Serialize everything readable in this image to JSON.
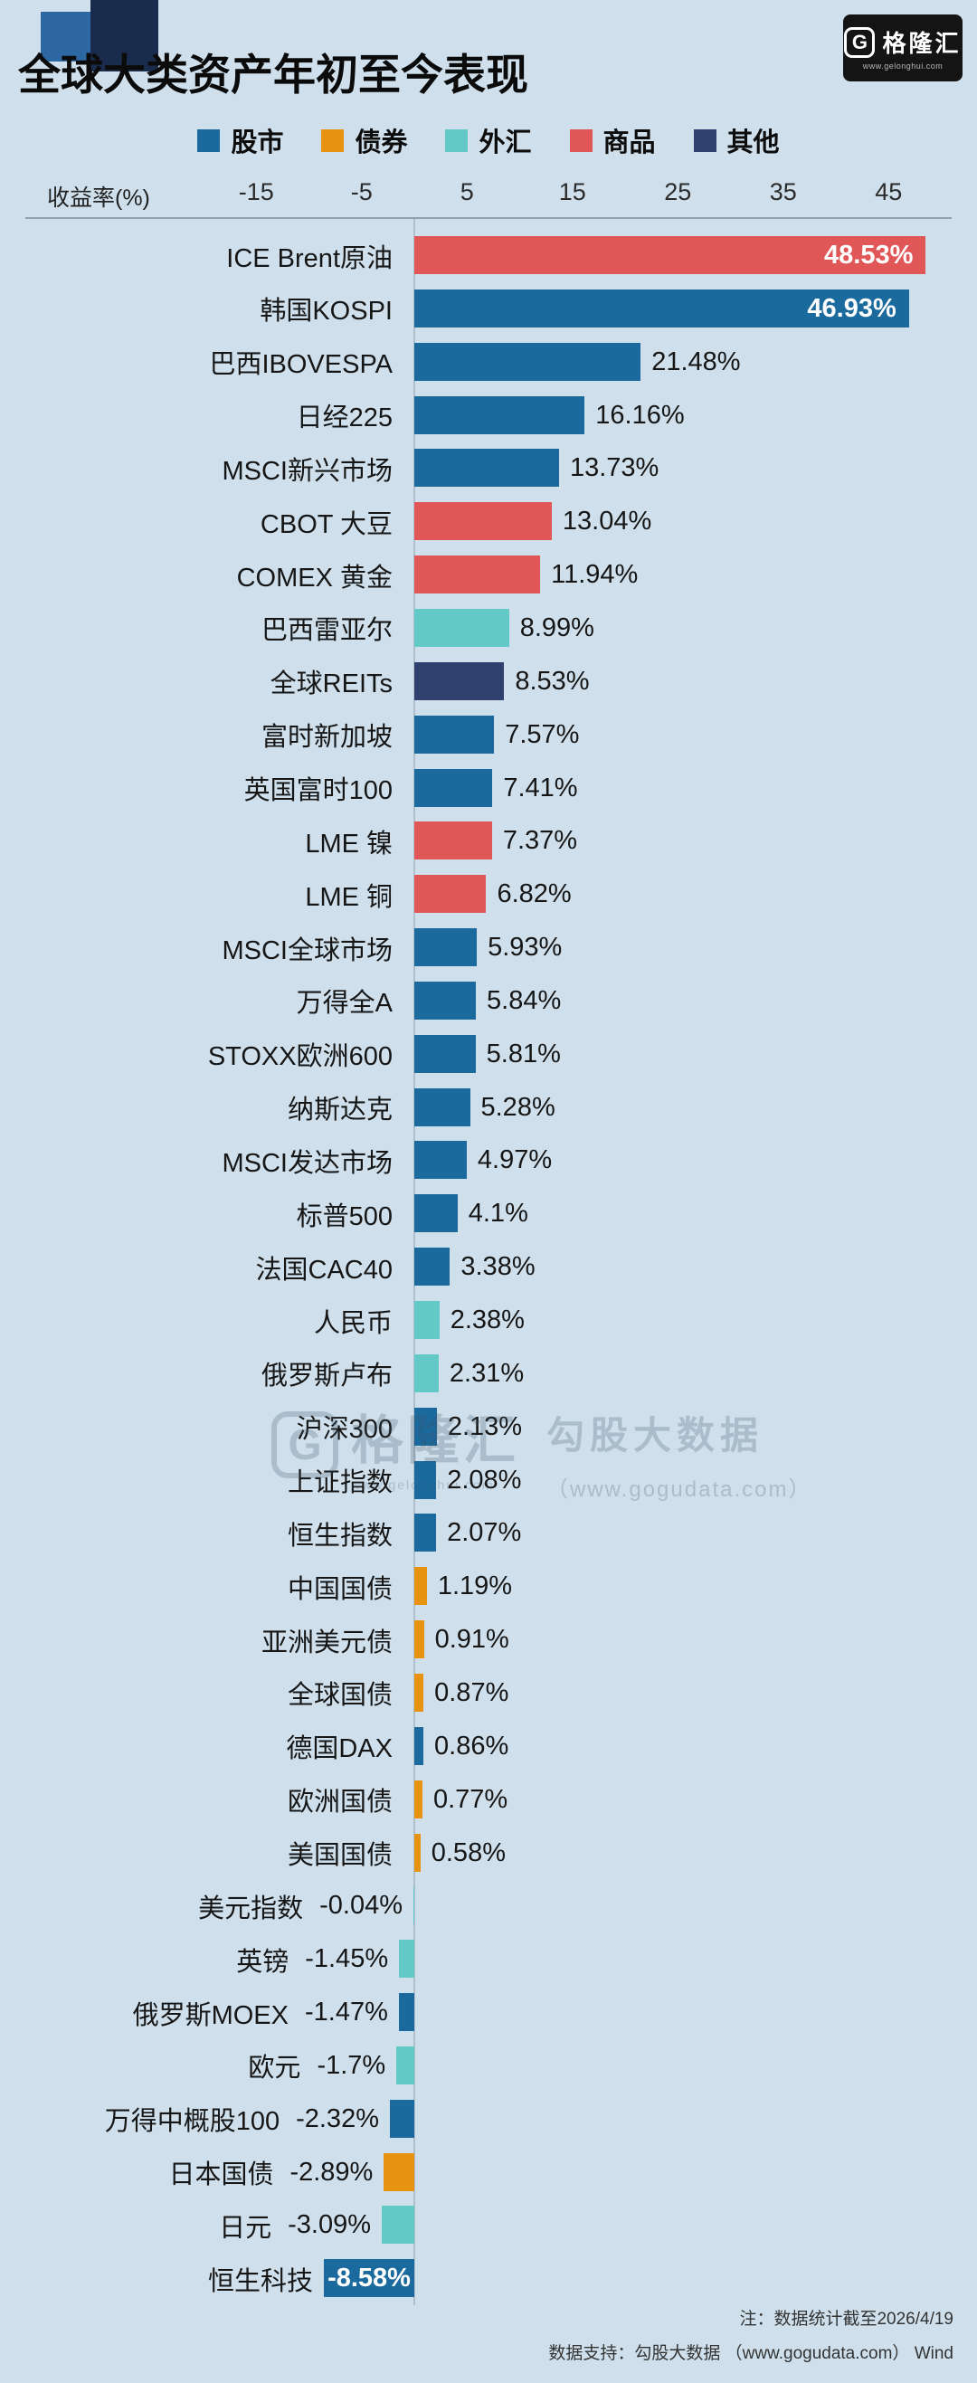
{
  "page": {
    "title": "全球大类资产年初至今表现",
    "background_color": "#cfe0ec"
  },
  "logo": {
    "g_letter": "G",
    "name": "格隆汇",
    "url": "www.gelonghui.com"
  },
  "legend": [
    {
      "label": "股市",
      "color": "#1a6a9e"
    },
    {
      "label": "债券",
      "color": "#e79210"
    },
    {
      "label": "外汇",
      "color": "#63c9c7"
    },
    {
      "label": "商品",
      "color": "#e15757"
    },
    {
      "label": "其他",
      "color": "#2f3f6e"
    }
  ],
  "axis": {
    "label": "收益率(%)"
  },
  "chart_data": {
    "type": "bar",
    "orientation": "horizontal",
    "title": "全球大类资产年初至今表现",
    "xlabel": "收益率(%)",
    "xticks": [
      -15,
      -5,
      5,
      15,
      25,
      35,
      45
    ],
    "xlim": [
      -17,
      53
    ],
    "value_unit": "%",
    "legend_position": "top",
    "grid": false,
    "rows": [
      {
        "label": "ICE Brent原油",
        "value": 48.53,
        "display": "48.53%",
        "category": "商品",
        "inside": true
      },
      {
        "label": "韩国KOSPI",
        "value": 46.93,
        "display": "46.93%",
        "category": "股市",
        "inside": true
      },
      {
        "label": "巴西IBOVESPA",
        "value": 21.48,
        "display": "21.48%",
        "category": "股市",
        "inside": false
      },
      {
        "label": "日经225",
        "value": 16.16,
        "display": "16.16%",
        "category": "股市",
        "inside": false
      },
      {
        "label": "MSCI新兴市场",
        "value": 13.73,
        "display": "13.73%",
        "category": "股市",
        "inside": false
      },
      {
        "label": "CBOT 大豆",
        "value": 13.04,
        "display": "13.04%",
        "category": "商品",
        "inside": false
      },
      {
        "label": "COMEX 黄金",
        "value": 11.94,
        "display": "11.94%",
        "category": "商品",
        "inside": false
      },
      {
        "label": "巴西雷亚尔",
        "value": 8.99,
        "display": "8.99%",
        "category": "外汇",
        "inside": false
      },
      {
        "label": "全球REITs",
        "value": 8.53,
        "display": "8.53%",
        "category": "其他",
        "inside": false
      },
      {
        "label": "富时新加坡",
        "value": 7.57,
        "display": "7.57%",
        "category": "股市",
        "inside": false
      },
      {
        "label": "英国富时100",
        "value": 7.41,
        "display": "7.41%",
        "category": "股市",
        "inside": false
      },
      {
        "label": "LME 镍",
        "value": 7.37,
        "display": "7.37%",
        "category": "商品",
        "inside": false
      },
      {
        "label": "LME 铜",
        "value": 6.82,
        "display": "6.82%",
        "category": "商品",
        "inside": false
      },
      {
        "label": "MSCI全球市场",
        "value": 5.93,
        "display": "5.93%",
        "category": "股市",
        "inside": false
      },
      {
        "label": "万得全A",
        "value": 5.84,
        "display": "5.84%",
        "category": "股市",
        "inside": false
      },
      {
        "label": "STOXX欧洲600",
        "value": 5.81,
        "display": "5.81%",
        "category": "股市",
        "inside": false
      },
      {
        "label": "纳斯达克",
        "value": 5.28,
        "display": "5.28%",
        "category": "股市",
        "inside": false
      },
      {
        "label": "MSCI发达市场",
        "value": 4.97,
        "display": "4.97%",
        "category": "股市",
        "inside": false
      },
      {
        "label": "标普500",
        "value": 4.1,
        "display": "4.1%",
        "category": "股市",
        "inside": false
      },
      {
        "label": "法国CAC40",
        "value": 3.38,
        "display": "3.38%",
        "category": "股市",
        "inside": false
      },
      {
        "label": "人民币",
        "value": 2.38,
        "display": "2.38%",
        "category": "外汇",
        "inside": false
      },
      {
        "label": "俄罗斯卢布",
        "value": 2.31,
        "display": "2.31%",
        "category": "外汇",
        "inside": false
      },
      {
        "label": "沪深300",
        "value": 2.13,
        "display": "2.13%",
        "category": "股市",
        "inside": false
      },
      {
        "label": "上证指数",
        "value": 2.08,
        "display": "2.08%",
        "category": "股市",
        "inside": false
      },
      {
        "label": "恒生指数",
        "value": 2.07,
        "display": "2.07%",
        "category": "股市",
        "inside": false
      },
      {
        "label": "中国国债",
        "value": 1.19,
        "display": "1.19%",
        "category": "债券",
        "inside": false
      },
      {
        "label": "亚洲美元债",
        "value": 0.91,
        "display": "0.91%",
        "category": "债券",
        "inside": false
      },
      {
        "label": "全球国债",
        "value": 0.87,
        "display": "0.87%",
        "category": "债券",
        "inside": false
      },
      {
        "label": "德国DAX",
        "value": 0.86,
        "display": "0.86%",
        "category": "股市",
        "inside": false
      },
      {
        "label": "欧洲国债",
        "value": 0.77,
        "display": "0.77%",
        "category": "债券",
        "inside": false
      },
      {
        "label": "美国国债",
        "value": 0.58,
        "display": "0.58%",
        "category": "债券",
        "inside": false
      },
      {
        "label": "美元指数",
        "value": -0.04,
        "display": "-0.04%",
        "category": "外汇",
        "inside": false
      },
      {
        "label": "英镑",
        "value": -1.45,
        "display": "-1.45%",
        "category": "外汇",
        "inside": false
      },
      {
        "label": "俄罗斯MOEX",
        "value": -1.47,
        "display": "-1.47%",
        "category": "股市",
        "inside": false
      },
      {
        "label": "欧元",
        "value": -1.7,
        "display": "-1.7%",
        "category": "外汇",
        "inside": false
      },
      {
        "label": "万得中概股100",
        "value": -2.32,
        "display": "-2.32%",
        "category": "股市",
        "inside": false
      },
      {
        "label": "日本国债",
        "value": -2.89,
        "display": "-2.89%",
        "category": "债券",
        "inside": false
      },
      {
        "label": "日元",
        "value": -3.09,
        "display": "-3.09%",
        "category": "外汇",
        "inside": false
      },
      {
        "label": "恒生科技",
        "value": -8.58,
        "display": "-8.58%",
        "category": "股市",
        "inside": true
      }
    ]
  },
  "watermark": {
    "g_letter": "G",
    "brand": "格隆汇",
    "brand_url": "www.gelonghui.com",
    "line1": "勾股大数据",
    "line2": "（www.gogudata.com）"
  },
  "footer": {
    "note": "注：数据统计截至2026/4/19",
    "source": "数据支持：勾股大数据 （www.gogudata.com） Wind"
  }
}
